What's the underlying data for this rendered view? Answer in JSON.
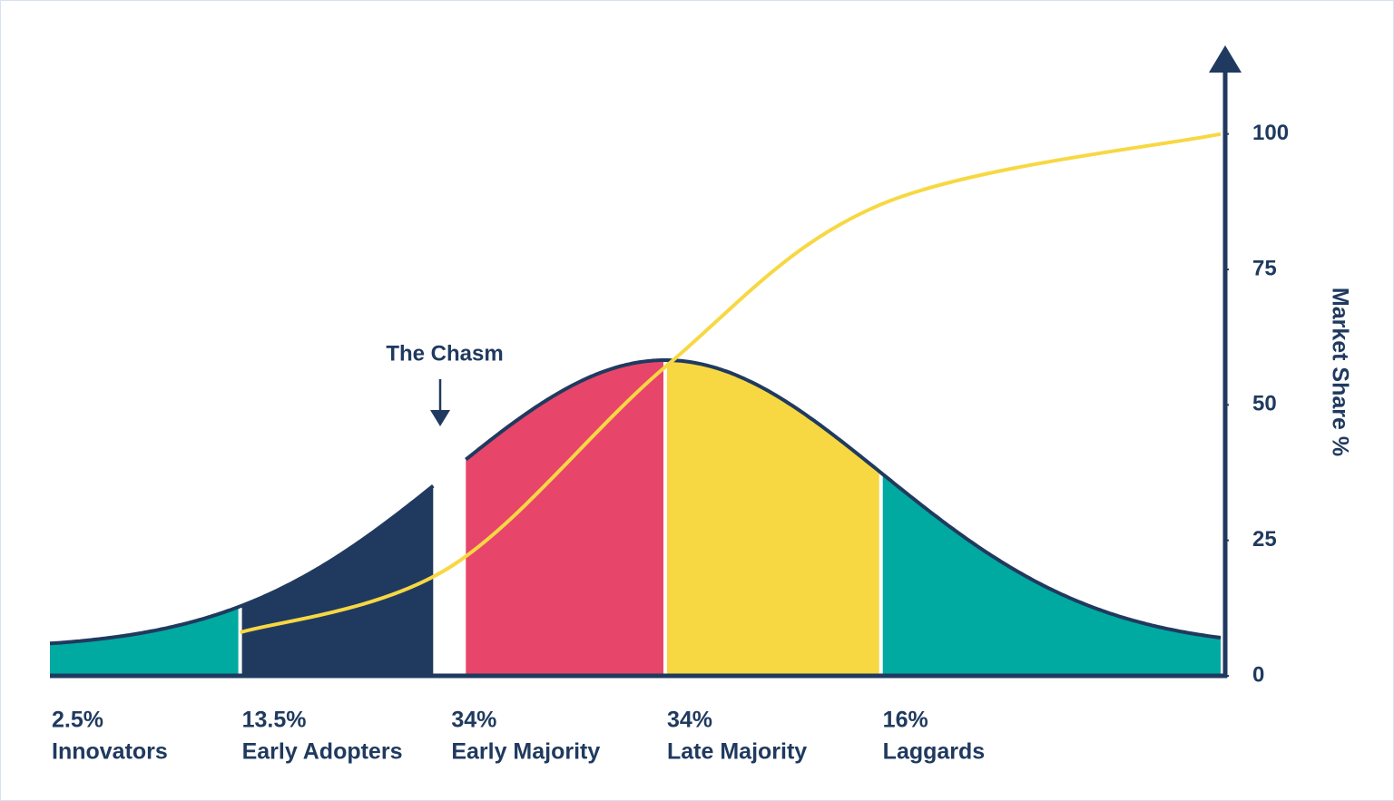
{
  "chart_data": {
    "type": "adoption",
    "categories": [
      "Innovators",
      "Early Adopters",
      "Early Majority",
      "Late Majority",
      "Laggards"
    ],
    "values": [
      2.5,
      13.5,
      34,
      34,
      16
    ],
    "value_labels": [
      "2.5%",
      "13.5%",
      "34%",
      "34%",
      "16%"
    ],
    "colors": [
      "#00aaa0",
      "#203a5f",
      "#e8456b",
      "#f7d843",
      "#00aaa0"
    ],
    "curve": {
      "color": "#f7d843",
      "values": [
        8,
        20,
        57,
        87,
        100
      ]
    },
    "annotation": "The Chasm",
    "y_label": "Market Share %",
    "ylim": [
      0,
      113
    ],
    "yticks": [
      0,
      25,
      50,
      75,
      100
    ]
  }
}
